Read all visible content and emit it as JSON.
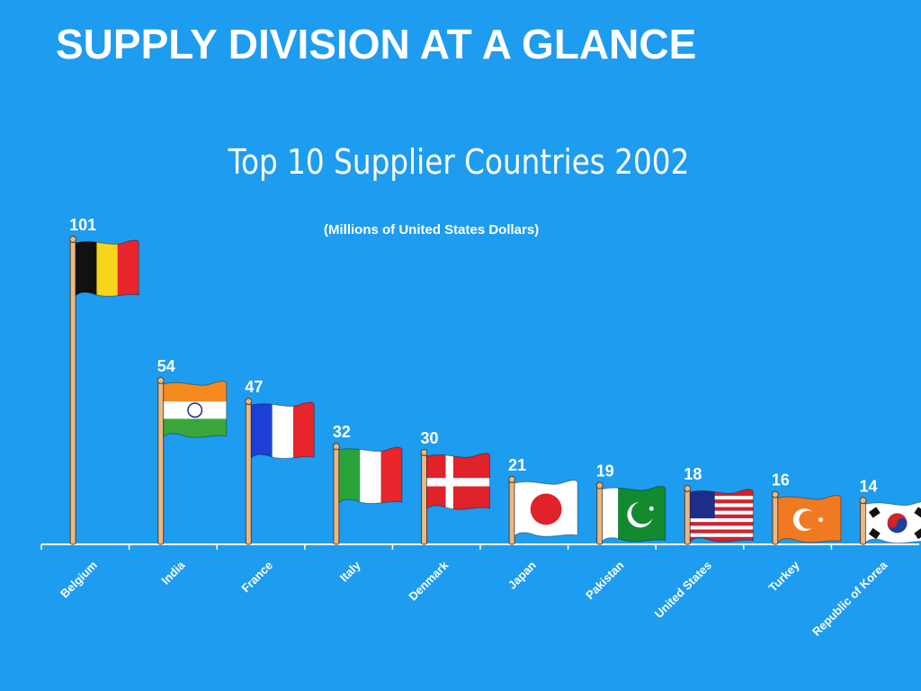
{
  "page": {
    "title": "SUPPLY DIVISION AT A GLANCE",
    "background": "#1e9cf0"
  },
  "chart_data": {
    "type": "bar",
    "title": "Top 10 Supplier Countries 2002",
    "subtitle": "(Millions of United States Dollars)",
    "xlabel": "",
    "ylabel": "",
    "categories": [
      "Belgium",
      "India",
      "France",
      "Italy",
      "Denmark",
      "Japan",
      "Pakistan",
      "United States",
      "Turkey",
      "Republic of Korea"
    ],
    "values": [
      101,
      54,
      47,
      32,
      30,
      21,
      19,
      18,
      16,
      14
    ],
    "ylim": [
      0,
      101
    ],
    "grid": false,
    "legend": "none",
    "mark_style": "flag on pole",
    "flag_icons": [
      "belgium-flag",
      "india-flag",
      "france-flag",
      "italy-flag",
      "denmark-flag",
      "japan-flag",
      "pakistan-flag",
      "united-states-flag",
      "turkey-flag",
      "south-korea-flag"
    ],
    "colors": {
      "axis": "#ffffff",
      "label": "#ffffff",
      "pole": "#e6b98a",
      "pole_outline": "#5a3a1a"
    }
  }
}
